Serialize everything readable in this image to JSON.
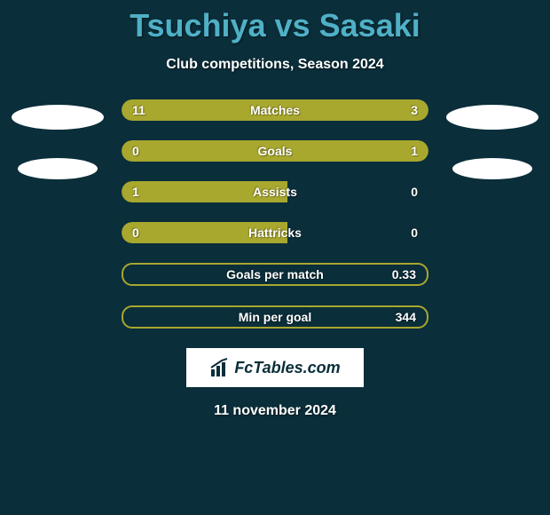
{
  "colors": {
    "background": "#0a2e3a",
    "bar_fill": "#a8a72e",
    "bar_outline": "#a8a72e",
    "title_color": "#4fb0c6",
    "text_white": "#ffffff",
    "logo_bg": "#ffffff",
    "logo_text": "#0a2e3a",
    "ellipse_color": "#ffffff"
  },
  "title": "Tsuchiya vs Sasaki",
  "subtitle": "Club competitions, Season 2024",
  "date": "11 november 2024",
  "logo_text": "FcTables.com",
  "bars": [
    {
      "label": "Matches",
      "left_value": "11",
      "right_value": "3",
      "left_pct": 75,
      "right_pct": 25,
      "outline_only": false
    },
    {
      "label": "Goals",
      "left_value": "0",
      "right_value": "1",
      "left_pct": 18,
      "right_pct": 82,
      "outline_only": false
    },
    {
      "label": "Assists",
      "left_value": "1",
      "right_value": "0",
      "left_pct": 54,
      "right_pct": 0,
      "outline_only": false
    },
    {
      "label": "Hattricks",
      "left_value": "0",
      "right_value": "0",
      "left_pct": 54,
      "right_pct": 0,
      "outline_only": false
    },
    {
      "label": "Goals per match",
      "left_value": "",
      "right_value": "0.33",
      "left_pct": 0,
      "right_pct": 0,
      "outline_only": true
    },
    {
      "label": "Min per goal",
      "left_value": "",
      "right_value": "344",
      "left_pct": 0,
      "right_pct": 0,
      "outline_only": true
    }
  ],
  "left_ellipses": [
    {
      "size": "large"
    },
    {
      "size": "small"
    }
  ],
  "right_ellipses": [
    {
      "size": "large"
    },
    {
      "size": "small"
    }
  ]
}
